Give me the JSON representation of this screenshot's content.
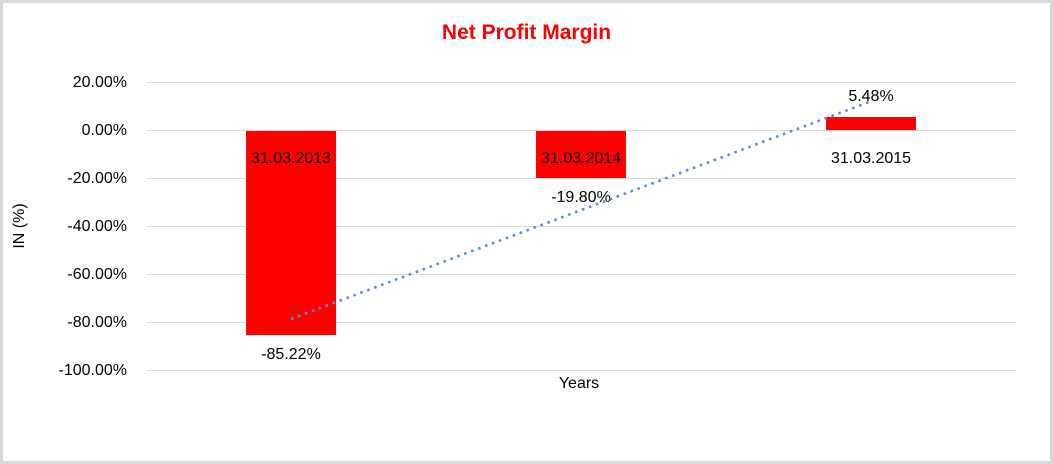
{
  "window": {
    "background": "#ffffff",
    "border_color": "#d7d7d7"
  },
  "chart_data": {
    "type": "bar",
    "title": "Net Profit Margin",
    "title_color": "#ff0000",
    "categories": [
      "31.03.2013",
      "31.03.2014",
      "31.03.2015"
    ],
    "values": [
      -85.22,
      -19.8,
      5.48
    ],
    "value_labels": [
      "-85.22%",
      "-19.80%",
      "5.48%"
    ],
    "bar_color": "#ff0000",
    "xlabel": "Years",
    "ylabel": "IN (%)",
    "ylim": [
      -100,
      20
    ],
    "yticks": [
      20,
      0,
      -20,
      -40,
      -60,
      -80,
      -100
    ],
    "ytick_labels": [
      "20.00%",
      "0.00%",
      "-20.00%",
      "-40.00%",
      "-60.00%",
      "-80.00%",
      "-100.00%"
    ],
    "grid": true,
    "gridline_color": "#d9d9d9",
    "legend_position": "none",
    "trendline": {
      "type": "linear",
      "line_style": "dotted",
      "color": "#5b8dce"
    }
  }
}
